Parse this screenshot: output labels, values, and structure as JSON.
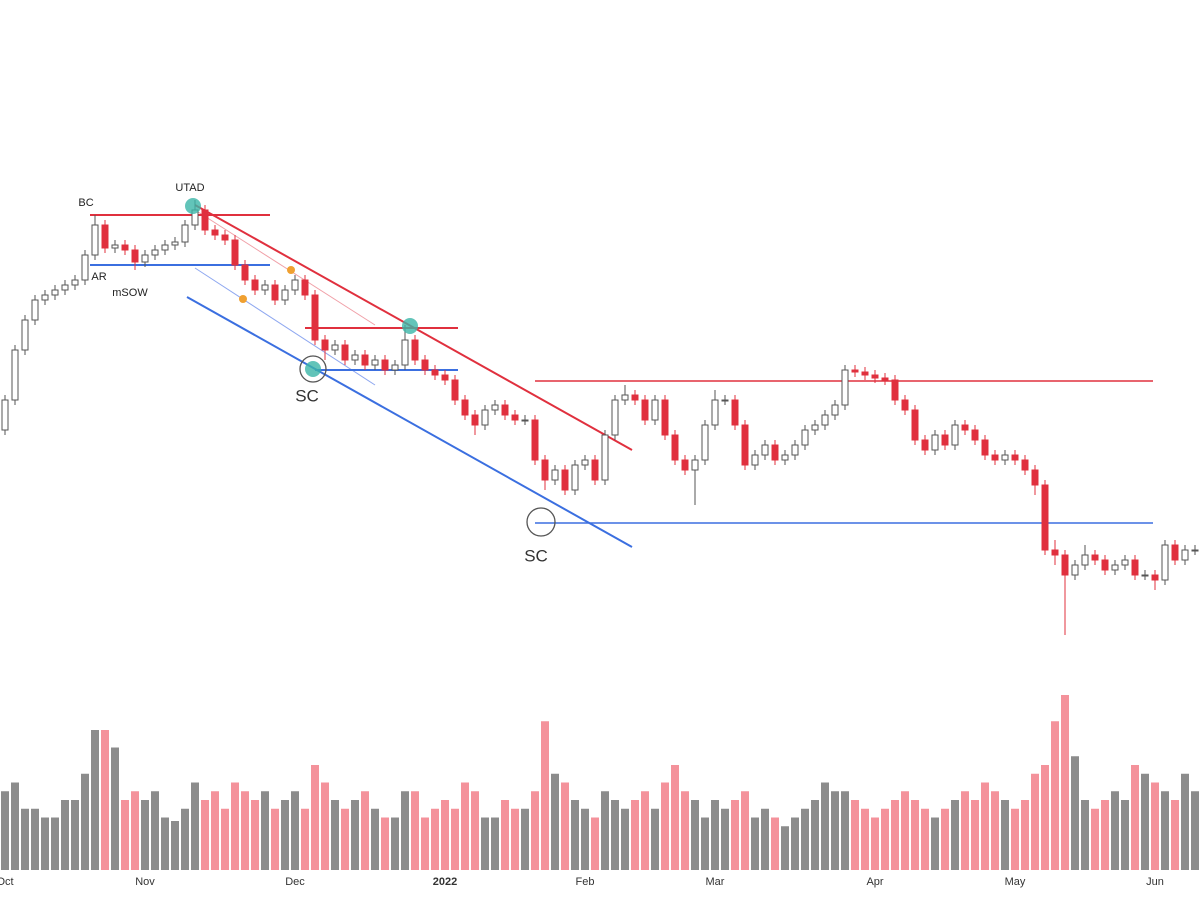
{
  "chart_data": {
    "type": "candlestick",
    "categories": [
      "Oct",
      null,
      null,
      null,
      null,
      null,
      null,
      null,
      null,
      null,
      null,
      null,
      null,
      null,
      "Nov",
      null,
      null,
      null,
      null,
      null,
      null,
      null,
      null,
      null,
      null,
      null,
      null,
      null,
      null,
      "Dec",
      null,
      null,
      null,
      null,
      null,
      null,
      null,
      null,
      null,
      null,
      null,
      null,
      null,
      null,
      "2022",
      null,
      null,
      null,
      null,
      null,
      null,
      null,
      null,
      null,
      null,
      null,
      null,
      null,
      "Feb",
      null,
      null,
      null,
      null,
      null,
      null,
      null,
      null,
      null,
      null,
      null,
      null,
      "Mar",
      null,
      null,
      null,
      null,
      null,
      null,
      null,
      null,
      null,
      null,
      null,
      null,
      null,
      null,
      null,
      "Apr",
      null,
      null,
      null,
      null,
      null,
      null,
      null,
      null,
      null,
      null,
      null,
      null,
      null,
      "May",
      null,
      null,
      null,
      null,
      null,
      null,
      null,
      null,
      null,
      null,
      null,
      null,
      null,
      "Jun",
      null,
      null,
      null,
      null
    ],
    "open": [
      44,
      50,
      60,
      66,
      70,
      71,
      72,
      73,
      74,
      79,
      85,
      80.4,
      81,
      80,
      77.6,
      79,
      80,
      81,
      81.6,
      85,
      88,
      84,
      83,
      82,
      77,
      74,
      72,
      73,
      70,
      72,
      74,
      71,
      62,
      60,
      61,
      58,
      59,
      57,
      58,
      56,
      57,
      62,
      58,
      56,
      55,
      54,
      50,
      47,
      45,
      48,
      49,
      47,
      46,
      46,
      38,
      34,
      36,
      32,
      37,
      38,
      34,
      43,
      50,
      51,
      50,
      46,
      50,
      43,
      38,
      36,
      38,
      45,
      50,
      50,
      45,
      37,
      39,
      41,
      38,
      39,
      41,
      44,
      45,
      47,
      49,
      56,
      55.6,
      55,
      54.4,
      54,
      50,
      48,
      42,
      40,
      43,
      41,
      45,
      44,
      42,
      39,
      38,
      39,
      38,
      36,
      33,
      20,
      19,
      15,
      17,
      19,
      18,
      16,
      17,
      18,
      15,
      15,
      14,
      21,
      18,
      20
    ],
    "high": [
      51,
      61,
      67,
      71,
      72,
      73,
      74,
      75,
      80,
      87,
      86,
      82,
      82,
      81,
      80,
      81,
      82,
      82.6,
      86,
      90,
      89,
      85,
      84,
      83,
      78,
      75,
      74,
      74,
      73,
      75,
      75,
      72,
      63,
      62,
      62,
      60,
      60,
      59,
      59,
      58,
      65,
      63,
      59,
      57,
      56,
      55,
      51,
      48,
      49,
      50,
      50,
      48,
      47,
      47,
      39,
      37,
      37,
      38,
      39,
      39,
      44,
      51,
      53,
      52,
      51,
      51,
      51,
      44,
      39,
      39,
      46,
      52,
      51,
      51,
      46,
      40,
      42,
      42,
      40,
      42,
      45,
      46,
      48,
      50,
      57,
      57,
      56.6,
      56,
      55.4,
      55,
      51,
      49,
      43,
      44,
      44,
      46,
      46,
      45,
      43,
      40,
      40,
      40,
      39,
      37,
      34,
      22,
      20,
      18,
      21,
      20,
      19,
      18,
      19,
      19,
      16,
      16,
      22,
      22,
      21,
      21
    ],
    "low": [
      43,
      49,
      59,
      65,
      69,
      70,
      71,
      72,
      73,
      78,
      79.4,
      79.4,
      79,
      76,
      76.6,
      78,
      79,
      80,
      80.6,
      84,
      83,
      82,
      81,
      76,
      73,
      71,
      71,
      69,
      69,
      71,
      70,
      61,
      58,
      59,
      57,
      57,
      56,
      56,
      55,
      55,
      56,
      57,
      55,
      54,
      53,
      49,
      46,
      43,
      44,
      47,
      46,
      45,
      45,
      37,
      32,
      33,
      31,
      31,
      36,
      33,
      33,
      42,
      49,
      49,
      45,
      45,
      42,
      37,
      35,
      29,
      37,
      44,
      49,
      44,
      36,
      36,
      38,
      37,
      37,
      38,
      40,
      43,
      44,
      46,
      48,
      54.6,
      54,
      53.4,
      53,
      49,
      47,
      41,
      39,
      39,
      40,
      40,
      43,
      41,
      38,
      37,
      37,
      37,
      35,
      31,
      19,
      17,
      3,
      14,
      16,
      17,
      15,
      15,
      16,
      14,
      14,
      12,
      13,
      17,
      17,
      19
    ],
    "close": [
      50,
      60,
      66,
      70,
      71,
      72,
      73,
      74,
      79,
      85,
      80.4,
      81,
      80,
      77.6,
      79,
      80,
      81,
      81.6,
      85,
      88,
      84,
      83,
      82,
      77,
      74,
      72,
      73,
      70,
      72,
      74,
      71,
      62,
      60,
      61,
      58,
      59,
      57,
      58,
      56,
      57,
      62,
      58,
      56,
      55,
      54,
      50,
      47,
      45,
      48,
      49,
      47,
      46,
      46,
      38,
      34,
      36,
      32,
      37,
      38,
      34,
      43,
      50,
      51,
      50,
      46,
      50,
      43,
      38,
      36,
      38,
      45,
      50,
      50,
      45,
      37,
      39,
      41,
      38,
      39,
      41,
      44,
      45,
      47,
      49,
      56,
      55.6,
      55,
      54.4,
      54,
      50,
      48,
      42,
      40,
      43,
      41,
      45,
      44,
      42,
      39,
      38,
      39,
      38,
      36,
      33,
      20,
      19,
      15,
      17,
      19,
      18,
      16,
      17,
      18,
      15,
      15,
      14,
      21,
      18,
      20,
      20
    ],
    "ylim": [
      0,
      130
    ],
    "up_color": "#ffffff",
    "down_color": "#e0303e",
    "volume": {
      "values": [
        45,
        50,
        35,
        35,
        30,
        30,
        40,
        40,
        55,
        80,
        80,
        70,
        40,
        45,
        40,
        45,
        30,
        28,
        35,
        50,
        40,
        45,
        35,
        50,
        45,
        40,
        45,
        35,
        40,
        45,
        35,
        60,
        50,
        40,
        35,
        40,
        45,
        35,
        30,
        30,
        45,
        45,
        30,
        35,
        40,
        35,
        50,
        45,
        30,
        30,
        40,
        35,
        35,
        45,
        85,
        55,
        50,
        40,
        35,
        30,
        45,
        40,
        35,
        40,
        45,
        35,
        50,
        60,
        45,
        40,
        30,
        40,
        35,
        40,
        45,
        30,
        35,
        30,
        25,
        30,
        35,
        40,
        50,
        45,
        45,
        40,
        35,
        30,
        35,
        40,
        45,
        40,
        35,
        30,
        35,
        40,
        45,
        40,
        50,
        45,
        40,
        35,
        40,
        55,
        60,
        85,
        100,
        65,
        40,
        35,
        40,
        45,
        40,
        60,
        55,
        50,
        45,
        40,
        55,
        45
      ],
      "ylim": [
        0,
        100
      ],
      "up_color": "#8c8c8c",
      "down_color": "#f4929b"
    },
    "annotations": [
      "BC",
      "UTAD",
      "AR",
      "mSOW",
      "SC",
      "SC"
    ]
  }
}
